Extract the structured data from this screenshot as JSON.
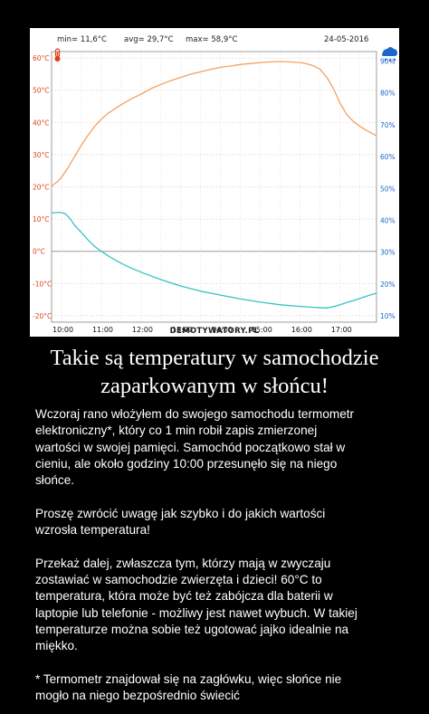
{
  "chart_data": {
    "type": "line",
    "stats": {
      "min": "min= 11,6°C",
      "avg": "avg= 29,7°C",
      "max": "max= 58,9°C",
      "date": "24-05-2016"
    },
    "icons": {
      "left": "thermometer-icon",
      "right": "humidity-icon"
    },
    "x_ticks": [
      "10:00",
      "11:00",
      "12:00",
      "13:00",
      "14:00",
      "15:00",
      "16:00",
      "17:00"
    ],
    "y_left_ticks": [
      "60°C",
      "50°C",
      "40°C",
      "30°C",
      "20°C",
      "10°C",
      "0°C",
      "-10°C",
      "-20°C"
    ],
    "y_right_ticks": [
      "90%",
      "80%",
      "70%",
      "60%",
      "50%",
      "40%",
      "30%",
      "20%",
      "10%"
    ],
    "x_range": [
      "9:45",
      "17:55"
    ],
    "ylim_temp": [
      -22,
      62
    ],
    "ylim_humidity": [
      8,
      93
    ],
    "grid": true,
    "series": [
      {
        "color": "#f4a060",
        "axis": "left",
        "x": [
          "9:45",
          "9:50",
          "9:55",
          "10:00",
          "10:10",
          "10:20",
          "10:30",
          "10:40",
          "10:50",
          "11:00",
          "11:10",
          "11:20",
          "11:30",
          "11:45",
          "12:00",
          "12:15",
          "12:30",
          "12:45",
          "13:00",
          "13:15",
          "13:30",
          "13:45",
          "14:00",
          "14:15",
          "14:30",
          "14:45",
          "15:00",
          "15:15",
          "15:30",
          "15:45",
          "16:00",
          "16:10",
          "16:20",
          "16:30",
          "16:40",
          "16:50",
          "17:00",
          "17:10",
          "17:20",
          "17:30",
          "17:40",
          "17:50",
          "17:55"
        ],
        "values": [
          20.2,
          21.0,
          21.8,
          23.0,
          26.0,
          29.5,
          33.0,
          36.0,
          38.8,
          41.0,
          42.8,
          44.2,
          45.5,
          47.3,
          48.8,
          50.5,
          51.8,
          53.0,
          54.0,
          55.0,
          55.7,
          56.5,
          57.1,
          57.5,
          58.0,
          58.3,
          58.6,
          58.8,
          58.9,
          58.8,
          58.6,
          58.2,
          57.6,
          56.5,
          54.0,
          50.5,
          46.0,
          42.5,
          40.3,
          38.8,
          37.5,
          36.4,
          35.8
        ]
      },
      {
        "color": "#39c1c4",
        "axis": "left",
        "x": [
          "9:45",
          "9:50",
          "9:55",
          "10:00",
          "10:05",
          "10:10",
          "10:15",
          "10:20",
          "10:30",
          "10:40",
          "10:50",
          "11:00",
          "11:15",
          "11:30",
          "11:45",
          "12:00",
          "12:30",
          "13:00",
          "13:30",
          "14:00",
          "14:30",
          "15:00",
          "15:30",
          "16:00",
          "16:20",
          "16:40",
          "16:50",
          "17:00",
          "17:10",
          "17:20",
          "17:30",
          "17:40",
          "17:50",
          "17:55"
        ],
        "values": [
          11.9,
          12.0,
          12.1,
          12.0,
          11.7,
          10.8,
          9.5,
          8.0,
          5.8,
          3.5,
          1.5,
          0.0,
          -2.0,
          -3.7,
          -5.2,
          -6.5,
          -8.8,
          -10.8,
          -12.4,
          -13.6,
          -14.8,
          -15.8,
          -16.6,
          -17.1,
          -17.4,
          -17.6,
          -17.2,
          -16.6,
          -15.9,
          -15.3,
          -14.6,
          -13.9,
          -13.3,
          -13.0
        ]
      }
    ],
    "watermark": "DEMOTYWATORY.PL"
  },
  "headline": [
    "Takie są temperatury w samochodzie",
    "zaparkowanym w słońcu!"
  ],
  "body": {
    "paragraphs": [
      "Wczoraj rano włożyłem do swojego samochodu termometr\nelektroniczny*, który co 1 min robił zapis zmierzonej\nwartości w swojej pamięci. Samochód początkowo stał w\ncieniu, ale około godziny 10:00 przesunęło się na niego\nsłońce.",
      "Proszę zwrócić uwagę jak szybko i do jakich wartości\nwzrosła temperatura!",
      "Przekaż dalej, zwłaszcza tym, którzy mają w zwyczaju\nzostawiać w samochodzie zwierzęta i dzieci! 60°C to\ntemperatura, która może być też zabójcza dla baterii w\nlaptopie lub telefonie - możliwy jest nawet wybuch. W takiej\ntemperaturze można sobie też ugotować jajko idealnie na\nmiękko.",
      "* Termometr znajdował się na zagłówku, więc słońce nie\nmogło na niego bezpośrednio świecić"
    ]
  }
}
